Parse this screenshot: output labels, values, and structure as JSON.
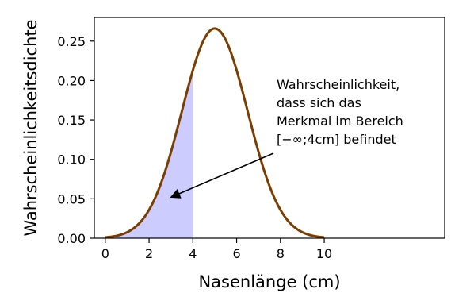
{
  "chart_data": {
    "type": "line",
    "xlabel": "Nasenlänge (cm)",
    "ylabel": "Wahrscheinlichkeitsdichte",
    "xlim": [
      -0.5,
      15.5
    ],
    "ylim": [
      0,
      0.28
    ],
    "xticks": [
      0,
      2,
      4,
      6,
      8,
      10
    ],
    "xtick_labels": [
      "0",
      "2",
      "4",
      "6",
      "8",
      "10"
    ],
    "yticks": [
      0.0,
      0.05,
      0.1,
      0.15,
      0.2,
      0.25
    ],
    "ytick_labels": [
      "0.00",
      "0.05",
      "0.10",
      "0.15",
      "0.20",
      "0.25"
    ],
    "grid": false,
    "series": [
      {
        "distribution": "normal",
        "mean": 5,
        "std": 1.5,
        "x_range": [
          0,
          10
        ],
        "color": "#7a3e00"
      }
    ],
    "shaded_region": {
      "x_from": 0,
      "x_to": 4,
      "color": "#ccccff"
    },
    "annotation": {
      "lines": [
        "Wahrscheinlichkeit,",
        " dass sich das",
        " Merkmal im Bereich",
        "[−∞;4cm] befindet"
      ],
      "arrow_to": {
        "x": 3.0,
        "y": 0.052
      }
    }
  }
}
